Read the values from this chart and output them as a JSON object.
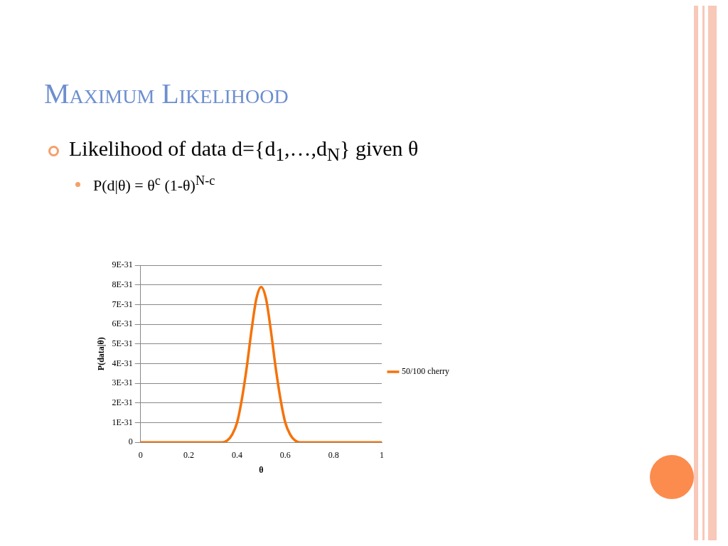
{
  "chart_data": {
    "type": "line",
    "title": "Maximum Likelihood",
    "annotations": [
      "Likelihood of data d={d$_{1}$,…,d$_{N}$} given θ",
      "P(d|θ) = θ$^{c}$ (1-θ)$^{N-c}$"
    ],
    "xlabel": "θ",
    "ylabel": "P(data|θ)",
    "x": [
      0,
      0.1,
      0.2,
      0.3,
      0.34,
      0.36,
      0.38,
      0.4,
      0.42,
      0.44,
      0.46,
      0.48,
      0.5,
      0.52,
      0.54,
      0.56,
      0.58,
      0.6,
      0.62,
      0.64,
      0.66,
      0.7,
      0.8,
      0.9,
      1
    ],
    "series": [
      {
        "name": "50/100 cherry",
        "color": "#f4730c",
        "values": [
          0,
          0,
          0,
          0,
          0,
          1e-32,
          4e-32,
          1e-31,
          2.2e-31,
          3.8e-31,
          5.7e-31,
          7.3e-31,
          7.9e-31,
          7.3e-31,
          5.7e-31,
          3.8e-31,
          2.2e-31,
          1e-31,
          4e-32,
          1e-32,
          0,
          0,
          0,
          0,
          0
        ]
      }
    ],
    "xlim": [
      0,
      1
    ],
    "xticks": [
      0,
      0.2,
      0.4,
      0.6,
      0.8,
      1
    ],
    "ylim": [
      0,
      9e-31
    ],
    "yticks": [
      0,
      {
        "value": 1e-31,
        "label": "1E-31"
      },
      {
        "value": 2e-31,
        "label": "2E-31"
      },
      {
        "value": 3e-31,
        "label": "3E-31"
      },
      {
        "value": 4e-31,
        "label": "4E-31"
      },
      {
        "value": 5e-31,
        "label": "5E-31"
      },
      {
        "value": 6e-31,
        "label": "6E-31"
      },
      {
        "value": 7e-31,
        "label": "7E-31"
      },
      {
        "value": 8e-31,
        "label": "8E-31"
      },
      {
        "value": 9e-31,
        "label": "9E-31"
      }
    ],
    "grid": "y",
    "legend": "right",
    "marker": "none",
    "line_style": "solid"
  }
}
